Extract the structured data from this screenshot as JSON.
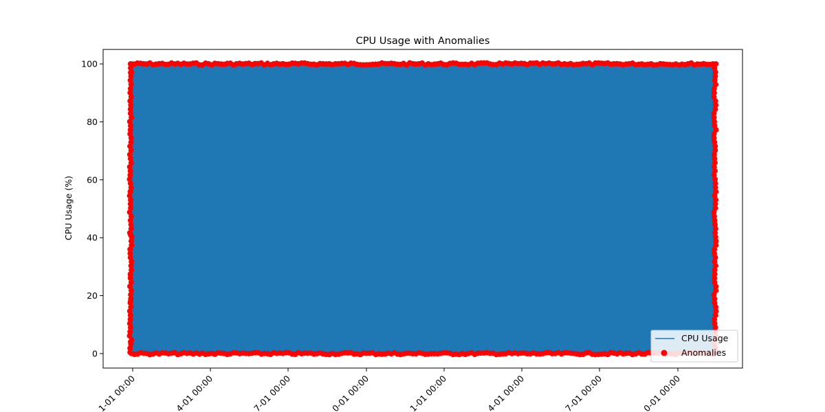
{
  "chart_data": {
    "type": "line",
    "title": "CPU Usage with Anomalies",
    "xlabel": "",
    "ylabel": "CPU Usage (%)",
    "ylim": [
      -5,
      105
    ],
    "yticks": [
      0,
      20,
      40,
      60,
      80,
      100
    ],
    "xtick_labels": [
      "1-01 00:00",
      "4-01 00:00",
      "7-01 00:00",
      "0-01 00:00",
      "1-01 00:00",
      "4-01 00:00",
      "7-01 00:00",
      "0-01 00:00"
    ],
    "grid": false,
    "legend": {
      "placement": "lower-right",
      "entries": [
        "CPU Usage",
        "Anomalies"
      ]
    },
    "series": [
      {
        "name": "CPU Usage",
        "kind": "line",
        "color": "#1f77b4",
        "y_range": [
          0,
          100
        ],
        "description_values": "dense random series spanning 0-100 across entire time range"
      },
      {
        "name": "Anomalies",
        "kind": "scatter",
        "color": "#ff0000",
        "sample_left_edge_values": [
          97,
          56,
          41,
          27,
          18,
          9,
          4
        ]
      }
    ]
  }
}
